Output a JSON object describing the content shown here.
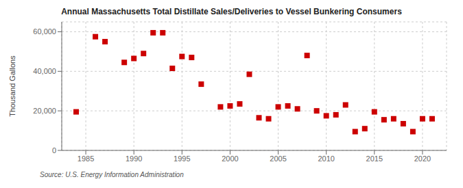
{
  "chart_data": {
    "type": "scatter",
    "title": "Annual Massachusetts Total Distillate Sales/Deliveries to Vessel Bunkering Consumers",
    "ylabel": "Thousand Gallons",
    "annotations": [
      "Source: U.S. Energy Information Administration"
    ],
    "x": [
      1984,
      1986,
      1987,
      1989,
      1990,
      1991,
      1992,
      1993,
      1994,
      1995,
      1996,
      1997,
      1999,
      2000,
      2001,
      2002,
      2003,
      2004,
      2005,
      2006,
      2007,
      2008,
      2009,
      2010,
      2011,
      2012,
      2013,
      2014,
      2015,
      2016,
      2017,
      2018,
      2019,
      2020,
      2021
    ],
    "values": [
      19500,
      57500,
      55000,
      44500,
      46500,
      49000,
      59500,
      59500,
      41500,
      47500,
      47000,
      33500,
      22000,
      22500,
      23500,
      38500,
      16500,
      16000,
      22000,
      22500,
      21000,
      48000,
      20000,
      17500,
      18000,
      23000,
      9500,
      11000,
      19500,
      15500,
      16000,
      13500,
      9500,
      16000,
      16000
    ],
    "color": "#cc0000",
    "marker": "square",
    "xlim": [
      1982.5,
      2022.5
    ],
    "ylim": [
      0,
      65000
    ],
    "xticks": [
      1985,
      1990,
      1995,
      2000,
      2005,
      2010,
      2015,
      2020
    ],
    "yticks": [
      0,
      {
        "value": 20000,
        "label": "20,000"
      },
      {
        "value": 40000,
        "label": "40,000"
      },
      {
        "value": 60000,
        "label": "60,000"
      }
    ],
    "grid": true
  }
}
